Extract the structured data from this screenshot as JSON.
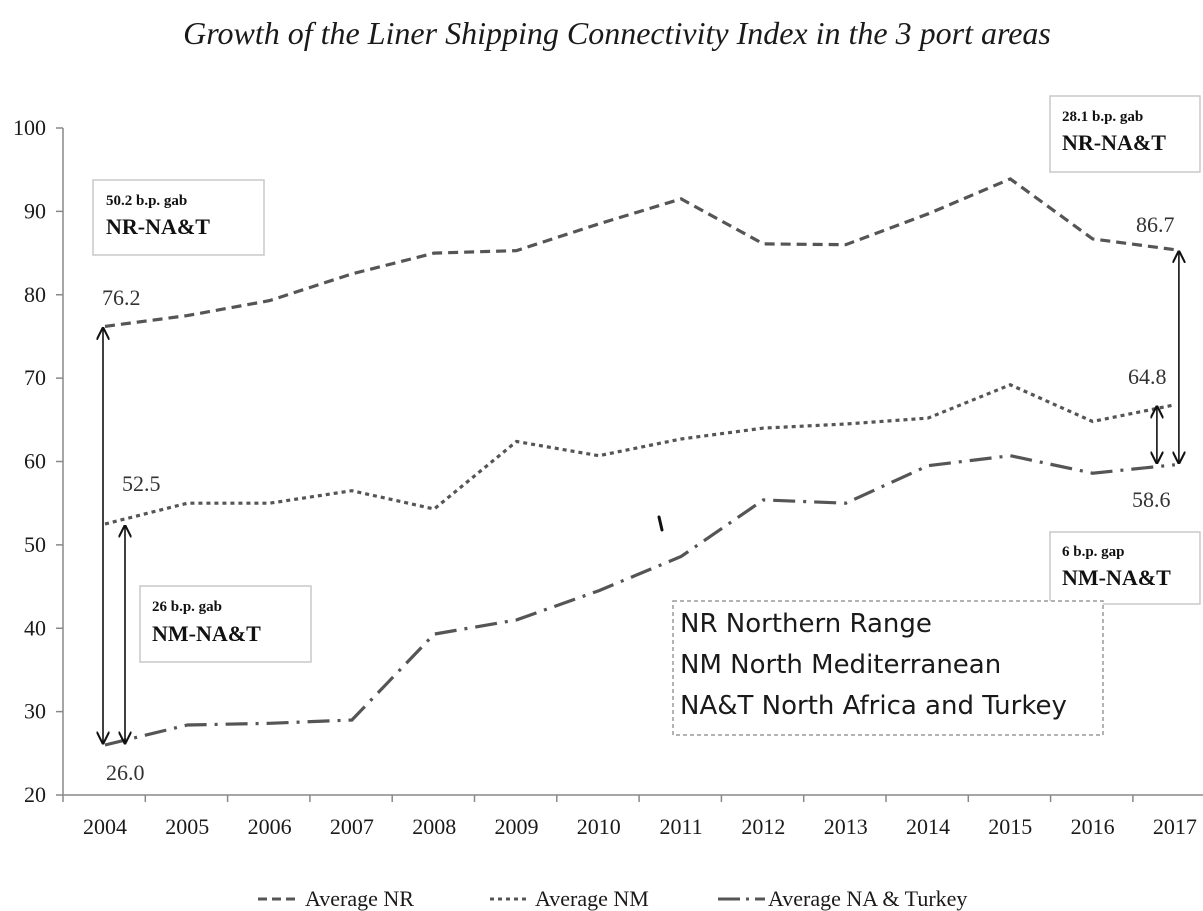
{
  "chart_data": {
    "type": "line",
    "title": "Growth of the Liner Shipping Connectivity Index in the 3 port areas",
    "xlabel": "",
    "ylabel": "",
    "x": [
      "2004",
      "2005",
      "2006",
      "2007",
      "2008",
      "2009",
      "2010",
      "2011",
      "2012",
      "2013",
      "2014",
      "2015",
      "2016",
      "2017"
    ],
    "ylim": [
      20,
      100
    ],
    "yticks": [
      "20",
      "30",
      "40",
      "50",
      "60",
      "70",
      "80",
      "90",
      "100"
    ],
    "grid": false,
    "legend_position": "bottom",
    "series": [
      {
        "name": "Average NR",
        "style": "dashed",
        "color": "#555555",
        "values": [
          76.2,
          77.5,
          79.3,
          82.5,
          85.0,
          85.3,
          88.5,
          91.5,
          86.1,
          86.0,
          89.7,
          93.9,
          86.7,
          85.4
        ]
      },
      {
        "name": "Average NM",
        "style": "dotted",
        "color": "#555555",
        "values": [
          52.5,
          55.0,
          55.0,
          56.5,
          54.3,
          62.4,
          60.7,
          62.7,
          64.0,
          64.5,
          65.2,
          69.2,
          64.8,
          66.8
        ]
      },
      {
        "name": "Average NA & Turkey",
        "style": "dashdot",
        "color": "#555555",
        "values": [
          26.0,
          28.4,
          28.6,
          29.0,
          39.3,
          41.0,
          44.5,
          48.6,
          55.4,
          55.0,
          59.5,
          60.7,
          58.6,
          59.6
        ]
      }
    ],
    "value_labels": [
      "76.2",
      "52.5",
      "26.0",
      "86.7",
      "64.8",
      "58.6"
    ],
    "annotations": [
      {
        "small": "50.2 b.p. gab",
        "big": "NR-NA&T"
      },
      {
        "small": "26 b.p. gab",
        "big": "NM-NA&T"
      },
      {
        "small": "28.1 b.p. gab",
        "big": "NR-NA&T"
      },
      {
        "small": "6 b.p. gap",
        "big": "NM-NA&T"
      }
    ],
    "key_box": [
      "NR Northern Range",
      "NM North Mediterranean",
      "NA&T North Africa and Turkey"
    ]
  }
}
